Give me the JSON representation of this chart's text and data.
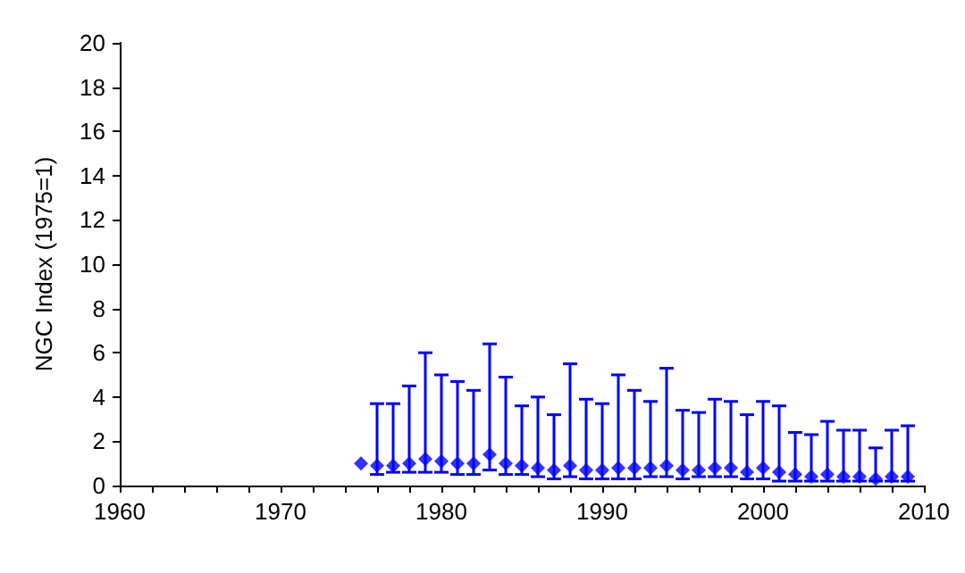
{
  "chart_data": {
    "type": "scatter",
    "ylabel": "NGC Index (1975=1)",
    "x": [
      1975,
      1976,
      1977,
      1978,
      1979,
      1980,
      1981,
      1982,
      1983,
      1984,
      1985,
      1986,
      1987,
      1988,
      1989,
      1990,
      1991,
      1992,
      1993,
      1994,
      1995,
      1996,
      1997,
      1998,
      1999,
      2000,
      2001,
      2002,
      2003,
      2004,
      2005,
      2006,
      2007,
      2008,
      2009
    ],
    "series": [
      {
        "color": "#0000ff",
        "values": [
          1.0,
          0.9,
          0.9,
          1.0,
          1.2,
          1.1,
          1.0,
          1.0,
          1.4,
          1.0,
          0.9,
          0.8,
          0.7,
          0.9,
          0.7,
          0.7,
          0.8,
          0.8,
          0.8,
          0.9,
          0.7,
          0.7,
          0.8,
          0.8,
          0.6,
          0.8,
          0.6,
          0.5,
          0.4,
          0.5,
          0.4,
          0.4,
          0.3,
          0.4,
          0.4
        ],
        "errors": [
          null,
          [
            0.5,
            3.7
          ],
          [
            0.6,
            3.7
          ],
          [
            0.6,
            4.5
          ],
          [
            0.6,
            6.0
          ],
          [
            0.6,
            5.0
          ],
          [
            0.5,
            4.7
          ],
          [
            0.5,
            4.3
          ],
          [
            0.7,
            6.4
          ],
          [
            0.5,
            4.9
          ],
          [
            0.5,
            3.6
          ],
          [
            0.4,
            4.0
          ],
          [
            0.3,
            3.2
          ],
          [
            0.4,
            5.5
          ],
          [
            0.3,
            3.9
          ],
          [
            0.3,
            3.7
          ],
          [
            0.3,
            5.0
          ],
          [
            0.3,
            4.3
          ],
          [
            0.4,
            3.8
          ],
          [
            0.4,
            5.3
          ],
          [
            0.3,
            3.4
          ],
          [
            0.4,
            3.3
          ],
          [
            0.4,
            3.9
          ],
          [
            0.4,
            3.8
          ],
          [
            0.3,
            3.2
          ],
          [
            0.3,
            3.8
          ],
          [
            0.2,
            3.6
          ],
          [
            0.2,
            2.4
          ],
          [
            0.2,
            2.3
          ],
          [
            0.2,
            2.9
          ],
          [
            0.2,
            2.5
          ],
          [
            0.2,
            2.5
          ],
          [
            0.2,
            1.7
          ],
          [
            0.2,
            2.5
          ],
          [
            0.2,
            2.7
          ]
        ]
      }
    ],
    "marker": "diamond",
    "xlim": [
      1960,
      2010
    ],
    "xticks": [
      1960,
      {
        "value": 1962,
        "label": null
      },
      {
        "value": 1964,
        "label": null
      },
      {
        "value": 1966,
        "label": null
      },
      {
        "value": 1968,
        "label": null
      },
      1970,
      {
        "value": 1972,
        "label": null
      },
      {
        "value": 1974,
        "label": null
      },
      {
        "value": 1976,
        "label": null
      },
      {
        "value": 1978,
        "label": null
      },
      1980,
      {
        "value": 1982,
        "label": null
      },
      {
        "value": 1984,
        "label": null
      },
      {
        "value": 1986,
        "label": null
      },
      {
        "value": 1988,
        "label": null
      },
      1990,
      {
        "value": 1992,
        "label": null
      },
      {
        "value": 1994,
        "label": null
      },
      {
        "value": 1996,
        "label": null
      },
      {
        "value": 1998,
        "label": null
      },
      2000,
      {
        "value": 2002,
        "label": null
      },
      {
        "value": 2004,
        "label": null
      },
      {
        "value": 2006,
        "label": null
      },
      {
        "value": 2008,
        "label": null
      },
      2010
    ],
    "ylim": [
      0,
      20
    ],
    "yticks": [
      0,
      2,
      4,
      6,
      8,
      10,
      12,
      14,
      16,
      18,
      20
    ]
  }
}
